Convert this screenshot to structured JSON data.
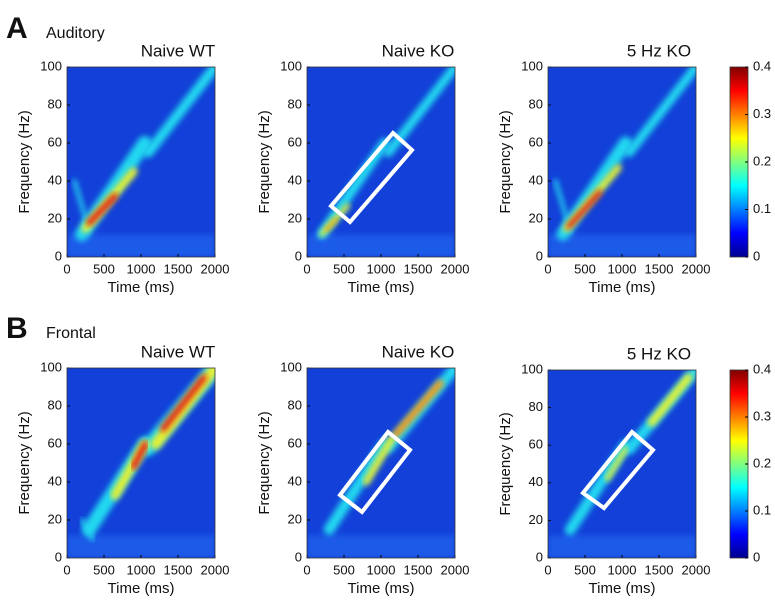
{
  "panels": [
    {
      "letter": "A",
      "label": "Auditory"
    },
    {
      "letter": "B",
      "label": "Frontal"
    }
  ],
  "chart_data": [
    {
      "type": "heatmap",
      "title": "Naive WT",
      "xlabel": "Time (ms)",
      "ylabel": "Frequency (Hz)",
      "xlim": [
        0,
        2000
      ],
      "ylim": [
        0,
        100
      ],
      "xticks": [
        0,
        500,
        1000,
        1500,
        2000
      ],
      "yticks": [
        0,
        20,
        40,
        60,
        80,
        100
      ]
    },
    {
      "type": "heatmap",
      "title": "Naive KO",
      "xlabel": "Time (ms)",
      "ylabel": "Frequency (Hz)",
      "xlim": [
        0,
        2000
      ],
      "ylim": [
        0,
        100
      ],
      "xticks": [
        0,
        500,
        1000,
        1500,
        2000
      ],
      "yticks": [
        0,
        20,
        40,
        60,
        80,
        100
      ]
    },
    {
      "type": "heatmap",
      "title": "5 Hz KO",
      "xlabel": "Time (ms)",
      "ylabel": "Frequency (Hz)",
      "xlim": [
        0,
        2000
      ],
      "ylim": [
        0,
        100
      ],
      "xticks": [
        0,
        500,
        1000,
        1500,
        2000
      ],
      "yticks": [
        0,
        20,
        40,
        60,
        80,
        100
      ],
      "colorbar": {
        "lim": [
          0,
          0.4
        ],
        "ticks": [
          0,
          0.1,
          0.2,
          0.3,
          0.4
        ]
      }
    },
    {
      "type": "heatmap",
      "title": "Naive WT",
      "xlabel": "Time (ms)",
      "ylabel": "Frequency (Hz)",
      "xlim": [
        0,
        2000
      ],
      "ylim": [
        0,
        100
      ],
      "xticks": [
        0,
        500,
        1000,
        1500,
        2000
      ],
      "yticks": [
        0,
        20,
        40,
        60,
        80,
        100
      ]
    },
    {
      "type": "heatmap",
      "title": "Naive KO",
      "xlabel": "Time (ms)",
      "ylabel": "Frequency (Hz)",
      "xlim": [
        0,
        2000
      ],
      "ylim": [
        0,
        100
      ],
      "xticks": [
        0,
        500,
        1000,
        1500,
        2000
      ],
      "yticks": [
        0,
        20,
        40,
        60,
        80,
        100
      ]
    },
    {
      "type": "heatmap",
      "title": "5 Hz KO",
      "xlabel": "Time (ms)",
      "ylabel": "Frequency (Hz)",
      "xlim": [
        0,
        2000
      ],
      "ylim": [
        0,
        100
      ],
      "xticks": [
        0,
        500,
        1000,
        1500,
        2000
      ],
      "yticks": [
        0,
        20,
        40,
        60,
        80,
        100
      ],
      "colorbar": {
        "lim": [
          0,
          0.4
        ],
        "ticks": [
          0,
          0.1,
          0.2,
          0.3,
          0.4
        ]
      }
    }
  ]
}
